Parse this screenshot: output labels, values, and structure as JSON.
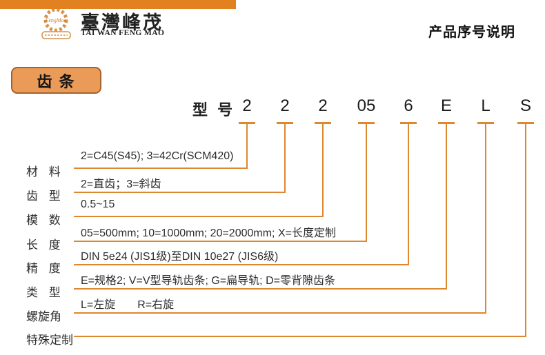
{
  "header": {
    "brand_cn": "臺灣峰茂",
    "brand_en": "TAI WAN FENG MAO",
    "logo_text": "FengMao",
    "page_title": "产品序号说明",
    "accent_color": "#e2811f"
  },
  "section": {
    "title": "齿 条"
  },
  "diagram": {
    "model_label": "型 号",
    "codes": [
      "2",
      "2",
      "2",
      "05",
      "6",
      "E",
      "L",
      "S"
    ],
    "line_color": "#dd8730",
    "rows": [
      {
        "label": "材 料",
        "value": "2=C45(S45); 3=42Cr(SCM420)"
      },
      {
        "label": "齿 型",
        "value": "2=直齿；3=斜齿"
      },
      {
        "label": "模 数",
        "value": "0.5~15"
      },
      {
        "label": "长 度",
        "value": "05=500mm; 10=1000mm; 20=2000mm; X=长度定制"
      },
      {
        "label": "精 度",
        "value": "DIN 5e24 (JIS1级)至DIN 10e27 (JIS6级)"
      },
      {
        "label": "类 型",
        "value": "E=规格2; V=V型导轨齿条; G=扁导轨; D=零背隙齿条"
      },
      {
        "label": "螺旋角",
        "value": "L=左旋　　R=右旋"
      },
      {
        "label": "特殊定制",
        "value": ""
      }
    ]
  }
}
